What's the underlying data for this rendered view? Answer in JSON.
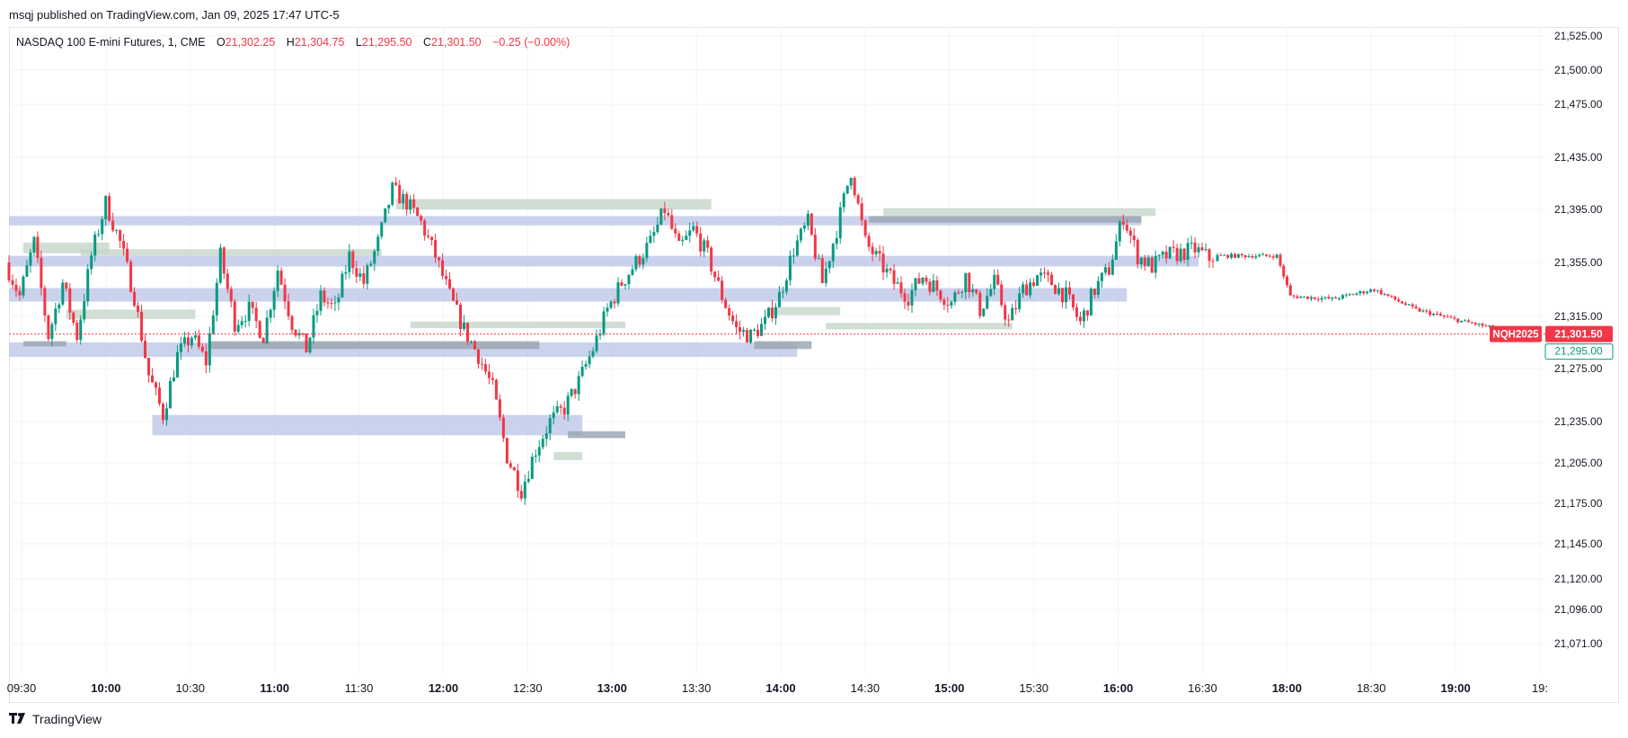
{
  "header": {
    "publish_line": "msqj published on TradingView.com, Jan 09, 2025 17:47 UTC-5"
  },
  "legend": {
    "symbol": "NASDAQ 100 E-mini Futures, 1, CME",
    "o_label": "O",
    "o_value": "21,302.25",
    "h_label": "H",
    "h_value": "21,304.75",
    "l_label": "L",
    "l_value": "21,295.50",
    "c_label": "C",
    "c_value": "21,301.50",
    "change": "−0.25 (−0.00%)"
  },
  "price_tags": {
    "symbol_tag": "NQH2025",
    "last_price": "21,301.50",
    "alt_price": "21,295.00"
  },
  "footer": {
    "brand": "TradingView",
    "logo_icon": "tradingview-logo-icon"
  },
  "colors": {
    "up": "#089981",
    "down": "#f23645",
    "blue_zone": "#b8c3e6",
    "green_zone": "#c5d6c8",
    "dark_zone": "#9ba8b4",
    "grid": "#f0f3fa"
  },
  "chart_data": {
    "type": "candlestick",
    "title": "NASDAQ 100 E-mini Futures, 1, CME",
    "y_ticks": [
      "21,525.00",
      "21,500.00",
      "21,475.00",
      "21,435.00",
      "21,395.00",
      "21,355.00",
      "21,315.00",
      "21,275.00",
      "21,235.00",
      "21,205.00",
      "21,175.00",
      "21,145.00",
      "21,120.00",
      "21,096.00",
      "21,071.00"
    ],
    "x_ticks": [
      {
        "label": "09:30",
        "bold": false
      },
      {
        "label": "10:00",
        "bold": true
      },
      {
        "label": "10:30",
        "bold": false
      },
      {
        "label": "11:00",
        "bold": true
      },
      {
        "label": "11:30",
        "bold": false
      },
      {
        "label": "12:00",
        "bold": true
      },
      {
        "label": "12:30",
        "bold": false
      },
      {
        "label": "13:00",
        "bold": true
      },
      {
        "label": "13:30",
        "bold": false
      },
      {
        "label": "14:00",
        "bold": true
      },
      {
        "label": "14:30",
        "bold": false
      },
      {
        "label": "15:00",
        "bold": true
      },
      {
        "label": "15:30",
        "bold": false
      },
      {
        "label": "16:00",
        "bold": true
      },
      {
        "label": "16:30",
        "bold": false
      },
      {
        "label": "18:00",
        "bold": true
      },
      {
        "label": "18:30",
        "bold": false
      },
      {
        "label": "19:00",
        "bold": true
      },
      {
        "label": "19:",
        "bold": false
      }
    ],
    "price_path": [
      [
        "09:30",
        21355
      ],
      [
        "09:35",
        21330
      ],
      [
        "09:40",
        21370
      ],
      [
        "09:45",
        21300
      ],
      [
        "09:50",
        21340
      ],
      [
        "09:55",
        21300
      ],
      [
        "10:00",
        21360
      ],
      [
        "10:05",
        21400
      ],
      [
        "10:10",
        21370
      ],
      [
        "10:15",
        21330
      ],
      [
        "10:20",
        21270
      ],
      [
        "10:25",
        21240
      ],
      [
        "10:30",
        21285
      ],
      [
        "10:35",
        21300
      ],
      [
        "10:40",
        21280
      ],
      [
        "10:45",
        21360
      ],
      [
        "10:50",
        21310
      ],
      [
        "10:55",
        21320
      ],
      [
        "11:00",
        21300
      ],
      [
        "11:05",
        21350
      ],
      [
        "11:10",
        21310
      ],
      [
        "11:15",
        21290
      ],
      [
        "11:20",
        21330
      ],
      [
        "11:25",
        21320
      ],
      [
        "11:30",
        21360
      ],
      [
        "11:35",
        21340
      ],
      [
        "11:40",
        21370
      ],
      [
        "11:45",
        21410
      ],
      [
        "11:50",
        21400
      ],
      [
        "11:55",
        21385
      ],
      [
        "12:00",
        21360
      ],
      [
        "12:05",
        21330
      ],
      [
        "12:10",
        21305
      ],
      [
        "12:15",
        21285
      ],
      [
        "12:20",
        21260
      ],
      [
        "12:25",
        21210
      ],
      [
        "12:30",
        21185
      ],
      [
        "12:35",
        21215
      ],
      [
        "12:40",
        21235
      ],
      [
        "12:45",
        21245
      ],
      [
        "12:50",
        21265
      ],
      [
        "12:55",
        21290
      ],
      [
        "13:00",
        21320
      ],
      [
        "13:05",
        21340
      ],
      [
        "13:10",
        21355
      ],
      [
        "13:15",
        21370
      ],
      [
        "13:20",
        21395
      ],
      [
        "13:25",
        21365
      ],
      [
        "13:30",
        21380
      ],
      [
        "13:35",
        21360
      ],
      [
        "13:40",
        21330
      ],
      [
        "13:45",
        21305
      ],
      [
        "13:50",
        21300
      ],
      [
        "13:55",
        21310
      ],
      [
        "14:00",
        21330
      ],
      [
        "14:05",
        21365
      ],
      [
        "14:10",
        21385
      ],
      [
        "14:15",
        21340
      ],
      [
        "14:20",
        21380
      ],
      [
        "14:25",
        21425
      ],
      [
        "14:30",
        21370
      ],
      [
        "14:35",
        21355
      ],
      [
        "14:40",
        21340
      ],
      [
        "14:45",
        21330
      ],
      [
        "14:50",
        21345
      ],
      [
        "14:55",
        21335
      ],
      [
        "15:00",
        21325
      ],
      [
        "15:05",
        21345
      ],
      [
        "15:10",
        21320
      ],
      [
        "15:15",
        21340
      ],
      [
        "15:20",
        21310
      ],
      [
        "15:25",
        21335
      ],
      [
        "15:30",
        21345
      ],
      [
        "15:35",
        21340
      ],
      [
        "15:40",
        21330
      ],
      [
        "15:45",
        21310
      ],
      [
        "15:50",
        21335
      ],
      [
        "15:55",
        21350
      ],
      [
        "16:00",
        21390
      ],
      [
        "16:05",
        21360
      ],
      [
        "16:10",
        21352
      ],
      [
        "16:15",
        21360
      ],
      [
        "16:20",
        21362
      ],
      [
        "16:25",
        21365
      ],
      [
        "16:30",
        21358
      ],
      [
        "16:35",
        21360
      ],
      [
        "17:45",
        21360
      ],
      [
        "18:00",
        21330
      ],
      [
        "18:15",
        21328
      ],
      [
        "18:30",
        21335
      ],
      [
        "18:45",
        21320
      ],
      [
        "19:00",
        21312
      ],
      [
        "19:15",
        21305
      ],
      [
        "19:20",
        21301.5
      ]
    ],
    "zones": [
      {
        "kind": "blue",
        "from": "09:30",
        "to": "16:05",
        "low": 21383,
        "high": 21390
      },
      {
        "kind": "blue",
        "from": "09:30",
        "to": "16:25",
        "low": 21352,
        "high": 21360
      },
      {
        "kind": "blue",
        "from": "09:30",
        "to": "16:00",
        "low": 21326,
        "high": 21336
      },
      {
        "kind": "blue",
        "from": "09:30",
        "to": "14:05",
        "low": 21284,
        "high": 21295
      },
      {
        "kind": "blue",
        "from": "10:20",
        "to": "12:50",
        "low": 21225,
        "high": 21240
      },
      {
        "kind": "green",
        "from": "11:45",
        "to": "13:35",
        "low": 21395,
        "high": 21403
      },
      {
        "kind": "green",
        "from": "09:35",
        "to": "10:05",
        "low": 21362,
        "high": 21370
      },
      {
        "kind": "green",
        "from": "09:55",
        "to": "11:40",
        "low": 21360,
        "high": 21365
      },
      {
        "kind": "green",
        "from": "09:50",
        "to": "10:35",
        "low": 21313,
        "high": 21320
      },
      {
        "kind": "green",
        "from": "11:50",
        "to": "13:05",
        "low": 21306,
        "high": 21311
      },
      {
        "kind": "green",
        "from": "12:40",
        "to": "12:50",
        "low": 21207,
        "high": 21213
      },
      {
        "kind": "green",
        "from": "14:15",
        "to": "15:20",
        "low": 21305,
        "high": 21310
      },
      {
        "kind": "green",
        "from": "14:35",
        "to": "16:10",
        "low": 21390,
        "high": 21396
      },
      {
        "kind": "green",
        "from": "13:55",
        "to": "14:20",
        "low": 21316,
        "high": 21322
      },
      {
        "kind": "dark",
        "from": "10:40",
        "to": "12:35",
        "low": 21290,
        "high": 21296
      },
      {
        "kind": "dark",
        "from": "12:45",
        "to": "13:05",
        "low": 21223,
        "high": 21228
      },
      {
        "kind": "dark",
        "from": "13:50",
        "to": "14:10",
        "low": 21290,
        "high": 21296
      },
      {
        "kind": "dark",
        "from": "14:30",
        "to": "16:05",
        "low": 21385,
        "high": 21390
      },
      {
        "kind": "dark",
        "from": "09:35",
        "to": "09:50",
        "low": 21292,
        "high": 21296
      }
    ],
    "last_price_line": 21301.5,
    "grid": true
  }
}
